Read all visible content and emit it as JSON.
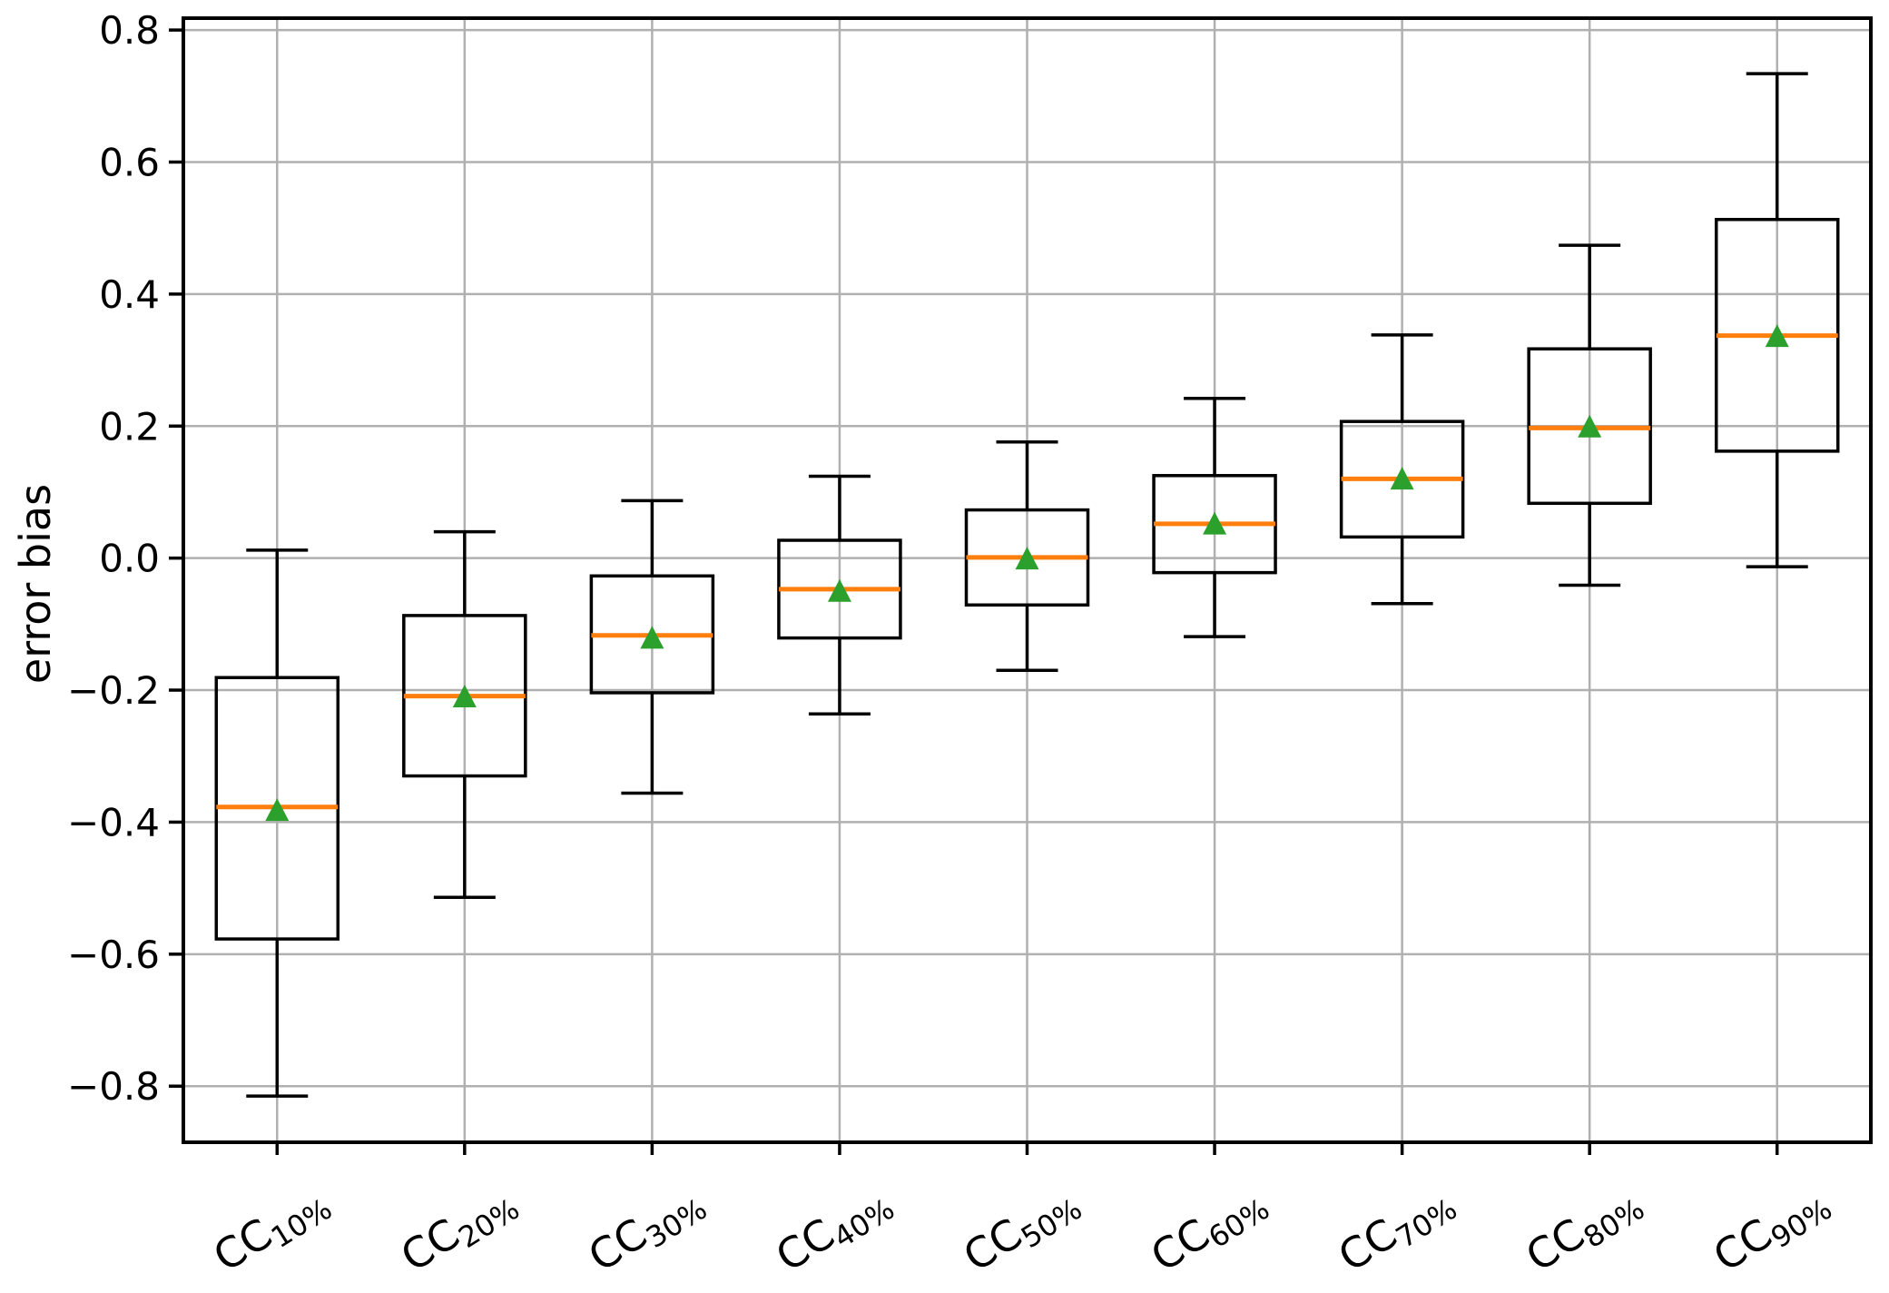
{
  "chart_data": {
    "type": "boxplot",
    "title": "",
    "xlabel": "",
    "ylabel": "error bias",
    "grid": true,
    "legend": false,
    "background": "#ffffff",
    "ylim": [
      -0.885,
      0.818
    ],
    "yticks": [
      0.8,
      0.6,
      0.4,
      0.2,
      0.0,
      -0.2,
      -0.4,
      -0.6,
      -0.8
    ],
    "ytick_labels": [
      "0.8",
      "0.6",
      "0.4",
      "0.2",
      "0.0",
      "−0.2",
      "−0.4",
      "−0.6",
      "−0.8"
    ],
    "categories": [
      "CC10%",
      "CC20%",
      "CC30%",
      "CC40%",
      "CC50%",
      "CC60%",
      "CC70%",
      "CC80%",
      "CC90%"
    ],
    "category_prefix": "CC",
    "category_subscripts": [
      "10%",
      "20%",
      "30%",
      "40%",
      "50%",
      "60%",
      "70%",
      "80%",
      "90%"
    ],
    "series": [
      {
        "label": "CC10%",
        "whisker_low": -0.815,
        "q1": -0.577,
        "median": -0.377,
        "mean": -0.383,
        "q3": -0.181,
        "whisker_high": 0.012
      },
      {
        "label": "CC20%",
        "whisker_low": -0.514,
        "q1": -0.33,
        "median": -0.209,
        "mean": -0.211,
        "q3": -0.087,
        "whisker_high": 0.04
      },
      {
        "label": "CC30%",
        "whisker_low": -0.356,
        "q1": -0.204,
        "median": -0.117,
        "mean": -0.122,
        "q3": -0.027,
        "whisker_high": 0.087
      },
      {
        "label": "CC40%",
        "whisker_low": -0.236,
        "q1": -0.121,
        "median": -0.047,
        "mean": -0.051,
        "q3": 0.027,
        "whisker_high": 0.124
      },
      {
        "label": "CC50%",
        "whisker_low": -0.17,
        "q1": -0.071,
        "median": 0.001,
        "mean": -0.002,
        "q3": 0.073,
        "whisker_high": 0.176
      },
      {
        "label": "CC60%",
        "whisker_low": -0.119,
        "q1": -0.022,
        "median": 0.052,
        "mean": 0.051,
        "q3": 0.125,
        "whisker_high": 0.242
      },
      {
        "label": "CC70%",
        "whisker_low": -0.069,
        "q1": 0.032,
        "median": 0.12,
        "mean": 0.119,
        "q3": 0.207,
        "whisker_high": 0.338
      },
      {
        "label": "CC80%",
        "whisker_low": -0.041,
        "q1": 0.083,
        "median": 0.197,
        "mean": 0.198,
        "q3": 0.317,
        "whisker_high": 0.474
      },
      {
        "label": "CC90%",
        "whisker_low": -0.013,
        "q1": 0.162,
        "median": 0.337,
        "mean": 0.335,
        "q3": 0.513,
        "whisker_high": 0.734
      }
    ],
    "mean_marker_shape": "triangle-up",
    "colors": {
      "box": "#000000",
      "whisker": "#000000",
      "median": "#ff7f0e",
      "mean_marker": "#2ca02c",
      "grid": "#b0b0b0",
      "spine": "#000000",
      "text": "#000000",
      "background": "#ffffff"
    }
  }
}
